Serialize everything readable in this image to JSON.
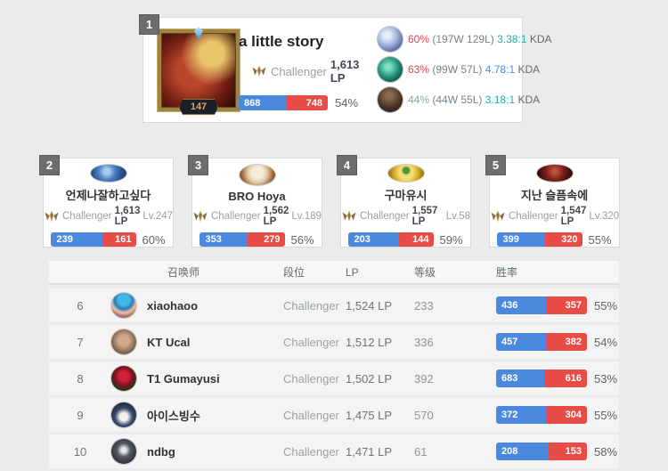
{
  "colors": {
    "bar_blue": "#4a89dd",
    "bar_red": "#e84c47",
    "winrate_red": "#e8414e",
    "kda_teal": "#1db2a5",
    "kda_blue": "#4a8fe3",
    "page_bg": "#ebebeb"
  },
  "top_player": {
    "rank": "1",
    "level": "147",
    "name": "a little story",
    "tier": "Challenger",
    "lp": "1,613 LP",
    "wins": "868",
    "losses": "748",
    "winrate": "54%",
    "avatar_icon": "blonde-champion-summoner-icon",
    "champions": [
      {
        "icon": "frost-champion-icon",
        "winrate": "60%",
        "record": "(197W 129L)",
        "kda": "3.38:1",
        "kda_label": "KDA"
      },
      {
        "icon": "teal-champion-icon",
        "winrate": "63%",
        "record": "(99W 57L)",
        "kda": "4.78:1",
        "kda_label": "KDA"
      },
      {
        "icon": "dark-champion-icon",
        "winrate": "44%",
        "record": "(44W 55L)",
        "kda": "3.18:1",
        "kda_label": "KDA"
      }
    ]
  },
  "cards": [
    {
      "rank": "2",
      "name": "언제나잘하고싶다",
      "tier": "Challenger",
      "lp": "1,613 LP",
      "level": "Lv.247",
      "wins": "239",
      "losses": "161",
      "winrate": "60%",
      "avatar_icon": "blue-orb-summoner-icon"
    },
    {
      "rank": "3",
      "name": "BRO Hoya",
      "tier": "Challenger",
      "lp": "1,562 LP",
      "level": "Lv.189",
      "wins": "353",
      "losses": "279",
      "winrate": "56%",
      "avatar_icon": "screaming-poro-summoner-icon"
    },
    {
      "rank": "4",
      "name": "구마유시",
      "tier": "Challenger",
      "lp": "1,557 LP",
      "level": "Lv.58",
      "wins": "203",
      "losses": "144",
      "winrate": "59%",
      "avatar_icon": "golden-sprout-summoner-icon"
    },
    {
      "rank": "5",
      "name": "지난 슬픔속에",
      "tier": "Challenger",
      "lp": "1,547 LP",
      "level": "Lv.320",
      "wins": "399",
      "losses": "320",
      "winrate": "55%",
      "avatar_icon": "dark-skull-summoner-icon"
    }
  ],
  "table": {
    "headers": {
      "summoner": "召唤师",
      "tier": "段位",
      "lp": "LP",
      "level": "等级",
      "winrate": "胜率"
    },
    "rows": [
      {
        "rank": "6",
        "name": "xiaohaoo",
        "tier": "Challenger",
        "lp": "1,524 LP",
        "level": "233",
        "wins": "436",
        "losses": "357",
        "winrate": "55%",
        "avatar_icon": "blue-hair-girl-summoner-icon"
      },
      {
        "rank": "7",
        "name": "KT Ucal",
        "tier": "Challenger",
        "lp": "1,512 LP",
        "level": "336",
        "wins": "457",
        "losses": "382",
        "winrate": "54%",
        "avatar_icon": "brown-portrait-summoner-icon"
      },
      {
        "rank": "8",
        "name": "T1 Gumayusi",
        "tier": "Challenger",
        "lp": "1,502 LP",
        "level": "392",
        "wins": "683",
        "losses": "616",
        "winrate": "53%",
        "avatar_icon": "red-rose-summoner-icon"
      },
      {
        "rank": "9",
        "name": "아이스빙수",
        "tier": "Challenger",
        "lp": "1,475 LP",
        "level": "570",
        "wins": "372",
        "losses": "304",
        "winrate": "55%",
        "avatar_icon": "penguin-summoner-icon"
      },
      {
        "rank": "10",
        "name": "ndbg",
        "tier": "Challenger",
        "lp": "1,471 LP",
        "level": "61",
        "wins": "208",
        "losses": "153",
        "winrate": "58%",
        "avatar_icon": "mustache-poro-summoner-icon"
      }
    ]
  }
}
